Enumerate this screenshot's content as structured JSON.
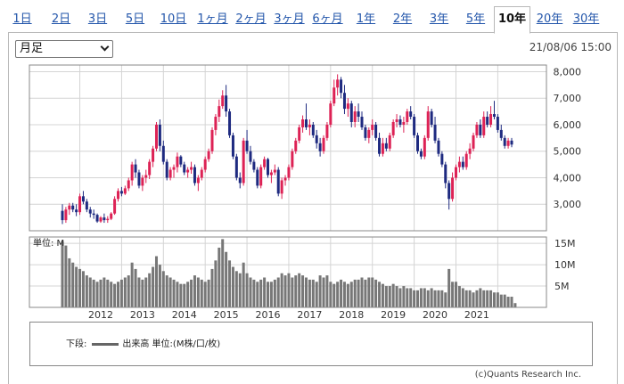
{
  "tabs": [
    {
      "label": "1日"
    },
    {
      "label": "2日"
    },
    {
      "label": "3日"
    },
    {
      "label": "5日"
    },
    {
      "label": "10日"
    },
    {
      "label": "1ヶ月"
    },
    {
      "label": "2ヶ月"
    },
    {
      "label": "3ヶ月"
    },
    {
      "label": "6ヶ月"
    },
    {
      "label": "1年"
    },
    {
      "label": "2年"
    },
    {
      "label": "3年"
    },
    {
      "label": "5年"
    },
    {
      "label": "10年",
      "active": true
    },
    {
      "label": "20年"
    },
    {
      "label": "30年"
    }
  ],
  "controls": {
    "period_select": "月足",
    "timestamp": "21/08/06 15:00"
  },
  "legend": {
    "lower_label": "下段:",
    "series_label": "出来高 単位:(M株/口/枚)"
  },
  "copyright": "(c)Quants Research Inc.",
  "colors": {
    "up": "#dd2255",
    "down": "#1e2a80",
    "volume": "#777777"
  },
  "chart_data": {
    "type": "candlestick",
    "interval": "monthly",
    "price_axis": {
      "ticks": [
        3000,
        4000,
        5000,
        6000,
        7000,
        8000
      ],
      "tick_labels": [
        "3,000",
        "4,000",
        "5,000",
        "6,000",
        "7,000",
        "8,000"
      ],
      "ylim": [
        2000,
        8250
      ],
      "grid": true
    },
    "volume_axis": {
      "unit_label": "単位: M",
      "ticks": [
        5,
        10,
        15
      ],
      "tick_labels": [
        "5M",
        "10M",
        "15M"
      ],
      "ylim": [
        0,
        16.5
      ],
      "grid": true
    },
    "x_labels": [
      "2012",
      "2013",
      "2014",
      "2015",
      "2016",
      "2017",
      "2018",
      "2019",
      "2020",
      "2021"
    ],
    "start": "2011-08",
    "ohlc": [
      [
        2750,
        3000,
        2250,
        2400
      ],
      [
        2400,
        2900,
        2300,
        2800
      ],
      [
        2800,
        3050,
        2600,
        2950
      ],
      [
        2950,
        3050,
        2700,
        2800
      ],
      [
        2800,
        3000,
        2550,
        2700
      ],
      [
        2700,
        3400,
        2600,
        3300
      ],
      [
        3300,
        3500,
        3000,
        3100
      ],
      [
        3100,
        3200,
        2700,
        2800
      ],
      [
        2800,
        2900,
        2500,
        2650
      ],
      [
        2650,
        2800,
        2450,
        2600
      ],
      [
        2600,
        2650,
        2300,
        2350
      ],
      [
        2350,
        2550,
        2300,
        2500
      ],
      [
        2500,
        2650,
        2300,
        2400
      ],
      [
        2400,
        2550,
        2300,
        2450
      ],
      [
        2450,
        2700,
        2400,
        2650
      ],
      [
        2650,
        3300,
        2600,
        3200
      ],
      [
        3200,
        3600,
        3100,
        3500
      ],
      [
        3500,
        3650,
        3300,
        3400
      ],
      [
        3400,
        3700,
        3350,
        3600
      ],
      [
        3600,
        4000,
        3500,
        3900
      ],
      [
        3900,
        4600,
        3700,
        4500
      ],
      [
        4500,
        4700,
        4000,
        4200
      ],
      [
        4200,
        4300,
        3600,
        3700
      ],
      [
        3700,
        4100,
        3500,
        4000
      ],
      [
        4000,
        4300,
        3800,
        4100
      ],
      [
        4100,
        4700,
        3950,
        4600
      ],
      [
        4600,
        5200,
        4400,
        5100
      ],
      [
        5100,
        6100,
        5000,
        6000
      ],
      [
        6000,
        6200,
        5000,
        5200
      ],
      [
        5200,
        5400,
        4500,
        4600
      ],
      [
        4600,
        4700,
        3900,
        4000
      ],
      [
        4000,
        4400,
        3900,
        4300
      ],
      [
        4300,
        4500,
        4000,
        4400
      ],
      [
        4400,
        4950,
        4200,
        4800
      ],
      [
        4800,
        4850,
        4400,
        4500
      ],
      [
        4500,
        4600,
        4100,
        4200
      ],
      [
        4200,
        4400,
        4000,
        4300
      ],
      [
        4300,
        4600,
        4150,
        4400
      ],
      [
        4400,
        4500,
        3700,
        3800
      ],
      [
        3800,
        4100,
        3500,
        4000
      ],
      [
        4000,
        4400,
        3900,
        4300
      ],
      [
        4300,
        4800,
        4200,
        4700
      ],
      [
        4700,
        5100,
        4600,
        5000
      ],
      [
        5000,
        5900,
        4900,
        5800
      ],
      [
        5800,
        6400,
        5600,
        6300
      ],
      [
        6300,
        6950,
        6100,
        6700
      ],
      [
        6700,
        7300,
        6600,
        7100
      ],
      [
        7100,
        7500,
        6300,
        6500
      ],
      [
        6500,
        6600,
        5500,
        5600
      ],
      [
        5600,
        5700,
        4700,
        4800
      ],
      [
        4800,
        4900,
        3900,
        4000
      ],
      [
        4000,
        4200,
        3600,
        3800
      ],
      [
        3800,
        5500,
        3700,
        5400
      ],
      [
        5400,
        5800,
        4900,
        5000
      ],
      [
        5000,
        5200,
        4500,
        4600
      ],
      [
        4600,
        4700,
        4200,
        4300
      ],
      [
        4300,
        4400,
        3600,
        3700
      ],
      [
        3700,
        4500,
        3600,
        4400
      ],
      [
        4400,
        4800,
        4300,
        4700
      ],
      [
        4700,
        4750,
        4000,
        4100
      ],
      [
        4100,
        4300,
        3800,
        4200
      ],
      [
        4200,
        4500,
        4100,
        4300
      ],
      [
        4300,
        4400,
        3300,
        3400
      ],
      [
        3400,
        4000,
        3200,
        3900
      ],
      [
        3900,
        4100,
        3700,
        4000
      ],
      [
        4000,
        4500,
        3900,
        4400
      ],
      [
        4400,
        5100,
        4300,
        5000
      ],
      [
        5000,
        5500,
        4900,
        5400
      ],
      [
        5400,
        6000,
        5300,
        5900
      ],
      [
        5900,
        6350,
        5700,
        6200
      ],
      [
        6200,
        6800,
        5800,
        5900
      ],
      [
        5900,
        6200,
        5600,
        6000
      ],
      [
        6000,
        6100,
        5500,
        5600
      ],
      [
        5600,
        5800,
        5100,
        5300
      ],
      [
        5300,
        5500,
        4800,
        5000
      ],
      [
        5000,
        5600,
        4900,
        5500
      ],
      [
        5500,
        6100,
        5400,
        6000
      ],
      [
        6000,
        6900,
        5900,
        6800
      ],
      [
        6800,
        7700,
        6700,
        7400
      ],
      [
        7400,
        7900,
        7100,
        7700
      ],
      [
        7700,
        7800,
        7000,
        7200
      ],
      [
        7200,
        7500,
        6400,
        6600
      ],
      [
        6600,
        7000,
        6300,
        6800
      ],
      [
        6800,
        6900,
        5900,
        6100
      ],
      [
        6100,
        6700,
        5900,
        6500
      ],
      [
        6500,
        6800,
        6100,
        6300
      ],
      [
        6300,
        6500,
        5800,
        5900
      ],
      [
        5900,
        6000,
        5400,
        5500
      ],
      [
        5500,
        5900,
        5300,
        5800
      ],
      [
        5800,
        6200,
        5600,
        6000
      ],
      [
        6000,
        6100,
        5400,
        5500
      ],
      [
        5500,
        5700,
        4800,
        4900
      ],
      [
        4900,
        5500,
        4800,
        5300
      ],
      [
        5300,
        5500,
        5000,
        5100
      ],
      [
        5100,
        5700,
        5000,
        5600
      ],
      [
        5600,
        6200,
        5500,
        6100
      ],
      [
        6100,
        6400,
        5900,
        6200
      ],
      [
        6200,
        6350,
        5900,
        6000
      ],
      [
        6000,
        6300,
        5700,
        6100
      ],
      [
        6100,
        6600,
        6000,
        6500
      ],
      [
        6500,
        6700,
        6200,
        6300
      ],
      [
        6300,
        6400,
        5500,
        5600
      ],
      [
        5600,
        5700,
        4900,
        5000
      ],
      [
        5000,
        5100,
        4700,
        4800
      ],
      [
        4800,
        5600,
        4700,
        5500
      ],
      [
        5500,
        6700,
        5400,
        6500
      ],
      [
        6500,
        6600,
        5900,
        6000
      ],
      [
        6000,
        6300,
        5300,
        5400
      ],
      [
        5400,
        5500,
        4800,
        4900
      ],
      [
        4900,
        5000,
        4400,
        4500
      ],
      [
        4500,
        4600,
        3600,
        3800
      ],
      [
        3800,
        3900,
        2800,
        3200
      ],
      [
        3200,
        4200,
        3100,
        4000
      ],
      [
        4000,
        4500,
        3900,
        4400
      ],
      [
        4400,
        4800,
        4200,
        4600
      ],
      [
        4600,
        4800,
        4300,
        4400
      ],
      [
        4400,
        5000,
        4300,
        4900
      ],
      [
        4900,
        5300,
        4700,
        5100
      ],
      [
        5100,
        5700,
        5000,
        5600
      ],
      [
        5600,
        6100,
        5500,
        6000
      ],
      [
        6000,
        6200,
        5500,
        5600
      ],
      [
        5600,
        6500,
        5500,
        6300
      ],
      [
        6300,
        6500,
        5900,
        6000
      ],
      [
        6000,
        6700,
        5900,
        6400
      ],
      [
        6400,
        6900,
        6200,
        6300
      ],
      [
        6300,
        6400,
        5700,
        5800
      ],
      [
        5800,
        6000,
        5400,
        5500
      ],
      [
        5500,
        5600,
        5100,
        5200
      ],
      [
        5200,
        5500,
        5100,
        5400
      ],
      [
        5400,
        5500,
        5150,
        5250
      ]
    ],
    "volume": [
      15.5,
      14.5,
      11.5,
      10.5,
      9.5,
      9,
      8.5,
      7.5,
      7,
      6.5,
      6,
      6.5,
      7,
      6.5,
      6,
      5.5,
      6,
      6.5,
      7,
      7.5,
      10.5,
      9,
      7,
      6.5,
      7,
      8,
      9.5,
      12,
      10,
      8.5,
      7.5,
      7,
      6.5,
      6,
      5.5,
      5.5,
      6,
      6.5,
      7.5,
      7,
      6.5,
      6,
      6.5,
      9,
      11,
      14,
      16,
      13,
      11,
      9.5,
      8.5,
      8,
      10.5,
      8,
      7,
      6.5,
      6,
      6.5,
      7,
      6,
      6,
      6.5,
      7,
      8,
      7.5,
      8,
      7,
      7.5,
      8,
      7.5,
      7,
      6.5,
      6.5,
      6,
      7.5,
      7,
      7.5,
      6,
      5.5,
      6,
      6.5,
      6,
      5.5,
      6,
      6.5,
      6.5,
      7,
      6.5,
      7,
      7,
      6.5,
      6,
      5.5,
      5,
      5,
      5.5,
      5,
      4.5,
      5,
      4.5,
      4.5,
      4,
      4,
      4.5,
      4.5,
      4,
      4.5,
      4,
      4,
      4,
      3.5,
      9,
      6,
      6,
      5,
      4.5,
      4,
      4,
      3.5,
      4,
      4.5,
      4,
      4,
      4,
      3.5,
      3.5,
      3,
      3,
      2.5,
      2.5,
      1
    ]
  }
}
